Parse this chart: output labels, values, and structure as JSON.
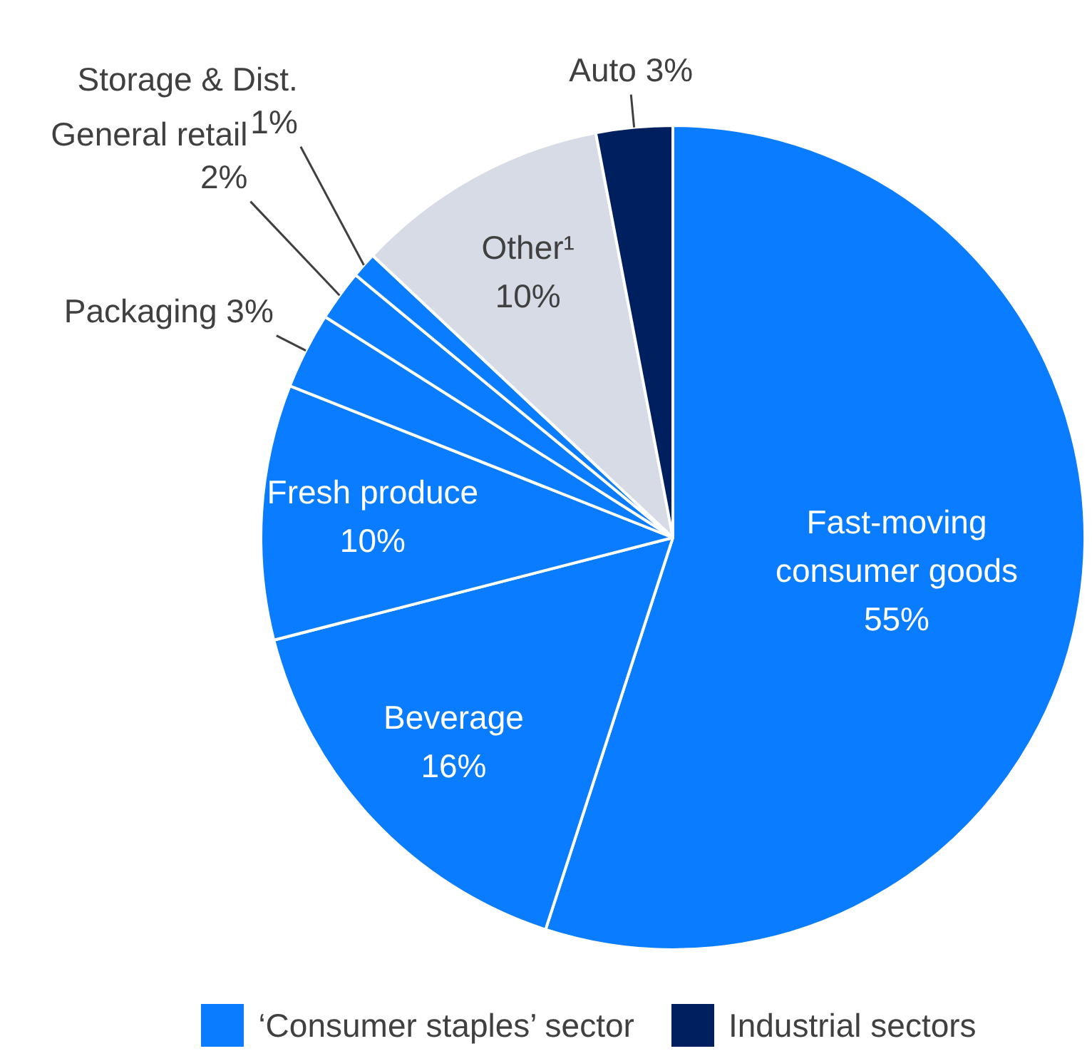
{
  "chart_data": {
    "type": "pie",
    "categories": [
      "Fast-moving consumer goods",
      "Beverage",
      "Fresh produce",
      "Packaging",
      "General retail",
      "Storage & Dist.",
      "Other¹",
      "Auto"
    ],
    "values": [
      55,
      16,
      10,
      3,
      2,
      1,
      10,
      3
    ],
    "value_labels": [
      "55%",
      "16%",
      "10%",
      "3%",
      "2%",
      "1%",
      "10%",
      "3%"
    ],
    "colors": [
      "#0a7cff",
      "#0a7cff",
      "#0a7cff",
      "#0a7cff",
      "#0a7cff",
      "#0a7cff",
      "#d7dbe5",
      "#001f5f"
    ],
    "annotations": [
      "‘Consumer staples’ sector",
      "Industrial sectors"
    ]
  }
}
